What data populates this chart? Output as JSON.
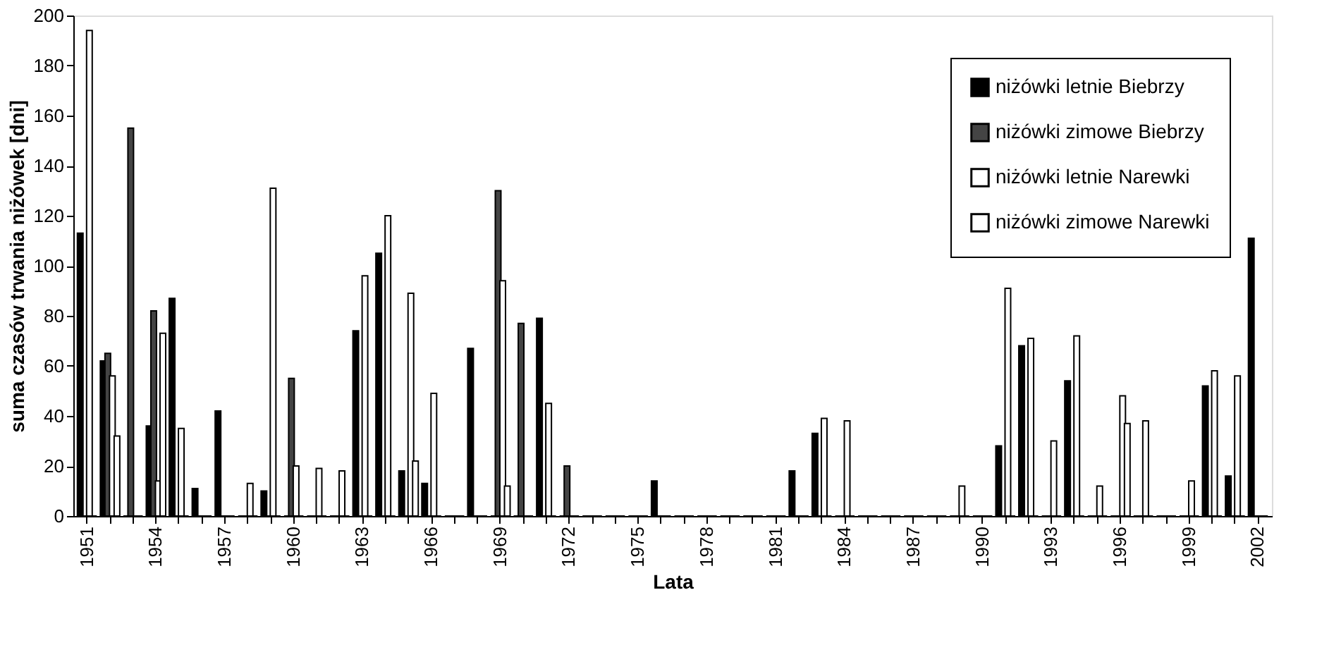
{
  "chart_data": {
    "type": "bar",
    "xlabel": "Lata",
    "ylabel": "suma czasów trwania niżówek [dni]",
    "categories": [
      "1951",
      null,
      null,
      "1954",
      null,
      null,
      "1957",
      null,
      null,
      "1960",
      null,
      null,
      "1963",
      null,
      null,
      "1966",
      null,
      null,
      "1969",
      null,
      null,
      "1972",
      null,
      null,
      "1975",
      null,
      null,
      "1978",
      null,
      null,
      "1981",
      null,
      null,
      "1984",
      null,
      null,
      "1987",
      null,
      null,
      "1990",
      null,
      null,
      "1993",
      null,
      null,
      "1996",
      null,
      null,
      "1999",
      null,
      null,
      "2002"
    ],
    "series": [
      {
        "name": "niżówki letnie Biebrzy",
        "color": "#000000",
        "values": [
          113,
          62,
          0,
          36,
          87,
          11,
          42,
          0,
          10,
          0,
          0,
          0,
          74,
          105,
          18,
          13,
          0,
          67,
          0,
          0,
          79,
          0,
          0,
          0,
          0,
          14,
          0,
          0,
          0,
          0,
          0,
          18,
          33,
          0,
          0,
          0,
          0,
          0,
          0,
          0,
          28,
          68,
          0,
          54,
          0,
          0,
          0,
          0,
          0,
          52,
          16,
          111
        ]
      },
      {
        "name": "niżówki zimowe Biebrzy",
        "color": "#444444",
        "values": [
          0,
          65,
          155,
          82,
          0,
          0,
          0,
          0,
          0,
          55,
          0,
          0,
          0,
          0,
          0,
          0,
          0,
          0,
          130,
          77,
          0,
          20,
          0,
          0,
          0,
          0,
          0,
          0,
          0,
          0,
          0,
          0,
          0,
          0,
          0,
          0,
          0,
          0,
          0,
          0,
          0,
          0,
          0,
          0,
          0,
          0,
          0,
          0,
          0,
          0,
          0,
          0
        ]
      },
      {
        "name": "niżówki letnie Narewki",
        "color": "#ffffff",
        "values": [
          194,
          56,
          0,
          14,
          35,
          0,
          0,
          13,
          131,
          20,
          19,
          18,
          96,
          120,
          89,
          49,
          0,
          0,
          94,
          0,
          45,
          0,
          0,
          0,
          0,
          0,
          0,
          0,
          0,
          0,
          0,
          0,
          39,
          38,
          0,
          0,
          0,
          0,
          12,
          0,
          91,
          71,
          30,
          72,
          12,
          48,
          38,
          0,
          14,
          58,
          56,
          0
        ]
      },
      {
        "name": "niżówki zimowe Narewki",
        "color": "#ffffff",
        "values": [
          0,
          32,
          0,
          73,
          0,
          0,
          0,
          0,
          0,
          0,
          0,
          0,
          0,
          0,
          22,
          0,
          0,
          0,
          12,
          0,
          0,
          0,
          0,
          0,
          0,
          0,
          0,
          0,
          0,
          0,
          0,
          0,
          0,
          0,
          0,
          0,
          0,
          0,
          0,
          0,
          0,
          0,
          0,
          0,
          0,
          37,
          0,
          0,
          0,
          0,
          0,
          0
        ]
      }
    ],
    "ylim": [
      0,
      200
    ],
    "yticks": [
      0,
      20,
      40,
      60,
      80,
      100,
      120,
      140,
      160,
      180,
      200
    ],
    "grid": false,
    "legend": "top right"
  }
}
